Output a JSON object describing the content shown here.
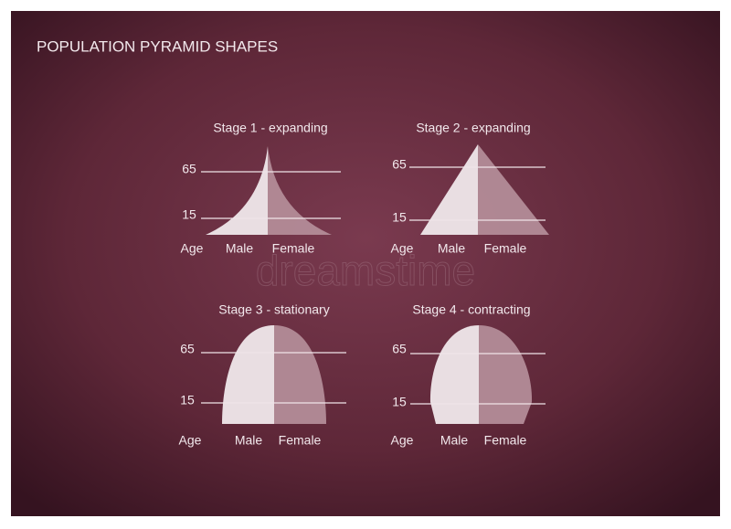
{
  "header": {
    "title": "POPULATION PYRAMID SHAPES"
  },
  "watermark": "dreamstime",
  "panels": [
    {
      "title": "Stage 1 - expanding",
      "upper_age": "65",
      "lower_age": "15",
      "age": "Age",
      "male": "Male",
      "female": "Female"
    },
    {
      "title": "Stage 2 - expanding",
      "upper_age": "65",
      "lower_age": "15",
      "age": "Age",
      "male": "Male",
      "female": "Female"
    },
    {
      "title": "Stage 3 - stationary",
      "upper_age": "65",
      "lower_age": "15",
      "age": "Age",
      "male": "Male",
      "female": "Female"
    },
    {
      "title": "Stage 4 - contracting",
      "upper_age": "65",
      "lower_age": "15",
      "age": "Age",
      "male": "Male",
      "female": "Female"
    }
  ]
}
